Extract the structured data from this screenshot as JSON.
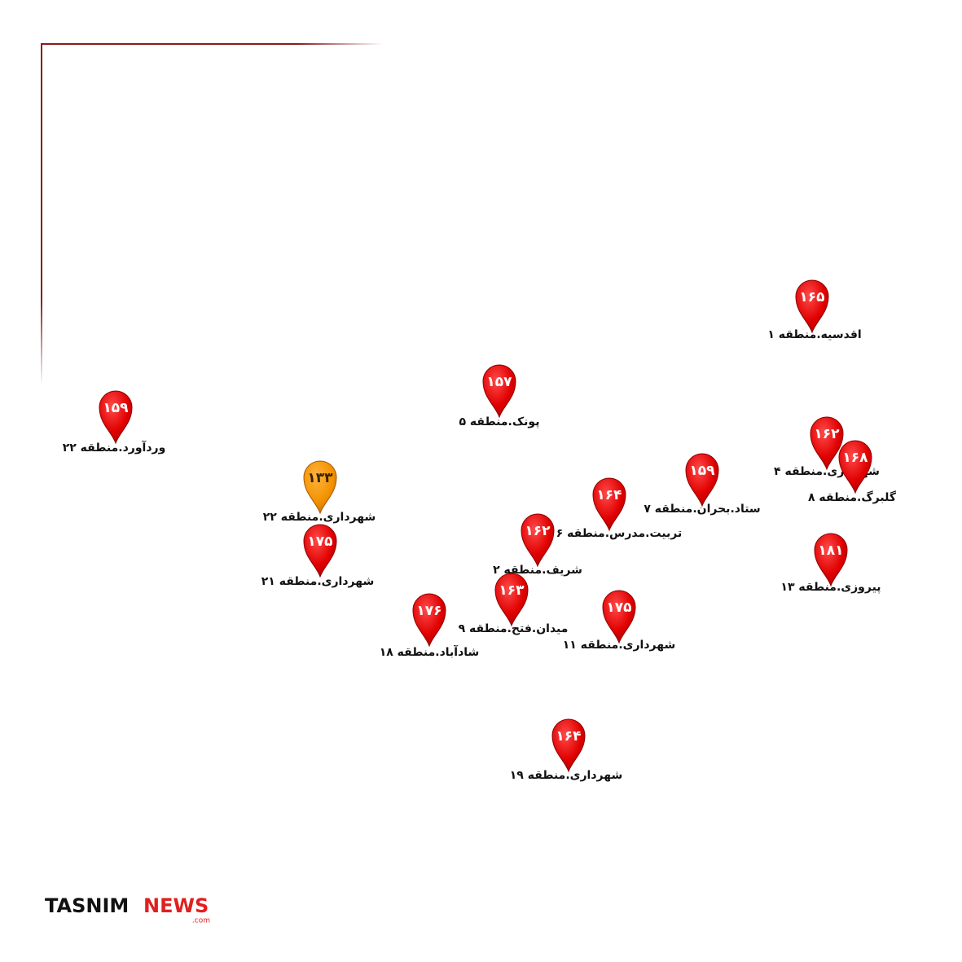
{
  "markers": [
    {
      "value": "۱۶۵",
      "name": "اقدسیه.منطقه ۱"
    },
    {
      "value": "۱۵۷",
      "name": "پونک.منطقه ۵"
    },
    {
      "value": "۱۵۹",
      "name": "وردآورد.منطقه ۲۲"
    },
    {
      "value": "۱۶۲",
      "name": "شهرداری.منطقه ۴"
    },
    {
      "value": "۱۶۸",
      "name": "گلبرگ.منطقه ۸"
    },
    {
      "value": "۱۵۹",
      "name": "ستاد.بحران.منطقه ۷"
    },
    {
      "value": "۱۳۳",
      "name": "شهرداری.منطقه ۲۲"
    },
    {
      "value": "۱۶۴",
      "name": "تربیت.مدرس.منطقه ۶"
    },
    {
      "value": "۱۶۲",
      "name": "شریف.منطقه ۲"
    },
    {
      "value": "۱۷۵",
      "name": "شهرداری.منطقه ۲۱"
    },
    {
      "value": "۱۸۱",
      "name": "پیروزی.منطقه ۱۳"
    },
    {
      "value": "۱۶۳",
      "name": "میدان.فتح.منطقه ۹"
    },
    {
      "value": "۱۷۶",
      "name": "شادآباد.منطقه ۱۸"
    },
    {
      "value": "۱۷۵",
      "name": "شهرداری.منطقه ۱۱"
    },
    {
      "value": "۱۶۴",
      "name": "شهرداری.منطقه ۱۹"
    }
  ],
  "logo": {
    "brand": "TASNIM",
    "accent": "NEWS",
    "suffix": ".com"
  }
}
